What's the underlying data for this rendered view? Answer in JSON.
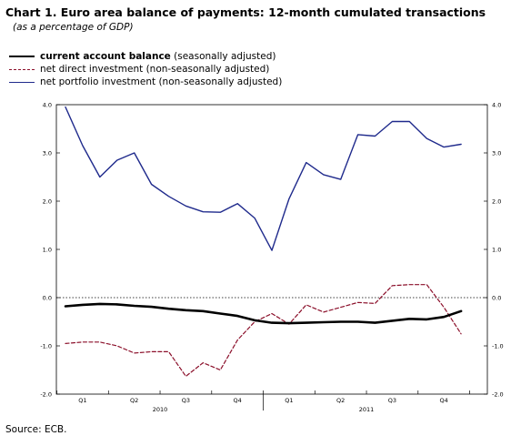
{
  "title": "Chart 1. Euro area balance of payments: 12-month cumulated transactions",
  "subtitle": "(as a percentage of GDP)",
  "source": "Source: ECB.",
  "legend": [
    {
      "label": "current account balance",
      "note": "(seasonally adjusted)",
      "color": "#000000",
      "style": "solid-thick"
    },
    {
      "label": "net direct investment",
      "note": "(non-seasonally adjusted)",
      "color": "#8b0f2a",
      "style": "dashed"
    },
    {
      "label": "net portfolio investment",
      "note": "(non-seasonally adjusted)",
      "color": "#1f2a8c",
      "style": "solid"
    }
  ],
  "chart_data": {
    "type": "line",
    "ylim": [
      -2.0,
      4.0
    ],
    "yticks": [
      "4.0",
      "3.0",
      "2.0",
      "1.0",
      "0.0",
      "-1.0",
      "-2.0"
    ],
    "xlim": [
      0,
      24
    ],
    "quarter_labels": [
      "Q1",
      "Q2",
      "Q3",
      "Q4",
      "Q1",
      "Q2",
      "Q3",
      "Q4"
    ],
    "year_labels": [
      "2010",
      "2011"
    ],
    "zero_line": "dotted",
    "series": [
      {
        "name": "net portfolio investment",
        "color": "#1f2a8c",
        "style": "solid",
        "x": [
          0,
          1,
          2,
          3,
          4,
          5,
          6,
          7,
          8,
          9,
          10,
          11,
          12,
          13,
          14,
          15,
          16,
          17,
          18,
          19,
          20,
          21,
          22,
          23
        ],
        "values": [
          3.95,
          3.15,
          2.5,
          2.85,
          3.0,
          2.35,
          2.1,
          1.9,
          1.78,
          1.77,
          1.95,
          1.65,
          0.98,
          2.05,
          2.8,
          2.55,
          2.45,
          3.38,
          3.35,
          3.65,
          3.65,
          3.3,
          3.12,
          3.18
        ]
      },
      {
        "name": "net direct investment",
        "color": "#8b0f2a",
        "style": "dashed",
        "x": [
          0,
          1,
          2,
          3,
          4,
          5,
          6,
          7,
          8,
          9,
          10,
          11,
          12,
          13,
          14,
          15,
          16,
          17,
          18,
          19,
          20,
          21,
          22,
          23
        ],
        "values": [
          -0.95,
          -0.92,
          -0.92,
          -1.0,
          -1.15,
          -1.12,
          -1.12,
          -1.63,
          -1.35,
          -1.5,
          -0.88,
          -0.5,
          -0.33,
          -0.55,
          -0.15,
          -0.3,
          -0.2,
          -0.1,
          -0.12,
          0.25,
          0.27,
          0.27,
          -0.2,
          -0.75
        ]
      },
      {
        "name": "current account balance",
        "color": "#000000",
        "style": "solid-thick",
        "x": [
          0,
          1,
          2,
          3,
          4,
          5,
          6,
          7,
          8,
          9,
          10,
          11,
          12,
          13,
          14,
          15,
          16,
          17,
          18,
          19,
          20,
          21,
          22,
          23
        ],
        "values": [
          -0.18,
          -0.15,
          -0.13,
          -0.14,
          -0.17,
          -0.19,
          -0.23,
          -0.26,
          -0.28,
          -0.33,
          -0.38,
          -0.47,
          -0.52,
          -0.53,
          -0.52,
          -0.51,
          -0.5,
          -0.5,
          -0.52,
          -0.48,
          -0.44,
          -0.45,
          -0.4,
          -0.28
        ]
      }
    ]
  }
}
